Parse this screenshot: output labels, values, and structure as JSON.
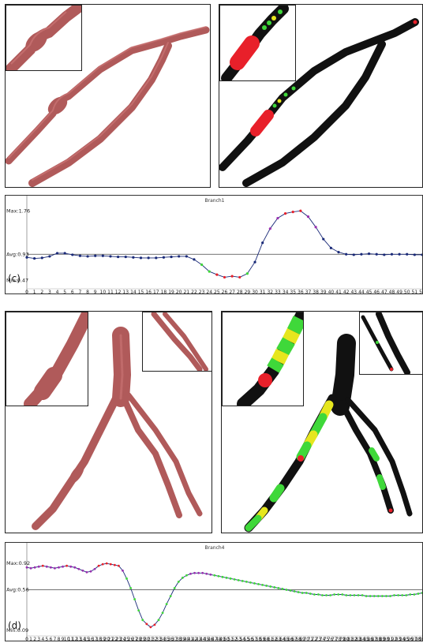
{
  "figure": {
    "panel_c_label": "(c)",
    "panel_d_label": "(d)"
  },
  "colors": {
    "vessel": "#b05a5a",
    "vessel_dark": "#6e2e2e",
    "black": "#111111",
    "red": "#e8202a",
    "green": "#3fd83a",
    "yellow": "#e6e61e",
    "purple": "#9a2fb0",
    "navy": "#1a2a78"
  },
  "chart_data": [
    {
      "type": "line",
      "title": "Branch1",
      "panel": "(c)",
      "max_label": "Max:1.76",
      "avg_label": "Avg:0.93",
      "min_label": "Min:0.47",
      "ylim": [
        0.3,
        1.9
      ],
      "avg": 0.93,
      "x": [
        0,
        1,
        2,
        3,
        4,
        5,
        6,
        7,
        8,
        9,
        10,
        11,
        12,
        13,
        14,
        15,
        16,
        17,
        18,
        19,
        20,
        21,
        22,
        23,
        24,
        25,
        26,
        27,
        28,
        29,
        30,
        31,
        32,
        33,
        34,
        35,
        36,
        37,
        38,
        39,
        40,
        41,
        42,
        43,
        44,
        45,
        46,
        47,
        48,
        49,
        50,
        51,
        52
      ],
      "values": [
        0.87,
        0.85,
        0.86,
        0.89,
        0.95,
        0.95,
        0.92,
        0.9,
        0.89,
        0.9,
        0.9,
        0.89,
        0.88,
        0.88,
        0.87,
        0.86,
        0.86,
        0.86,
        0.87,
        0.88,
        0.89,
        0.89,
        0.83,
        0.73,
        0.6,
        0.54,
        0.49,
        0.51,
        0.49,
        0.56,
        0.78,
        1.15,
        1.42,
        1.62,
        1.71,
        1.74,
        1.76,
        1.65,
        1.45,
        1.22,
        1.05,
        0.97,
        0.93,
        0.92,
        0.93,
        0.94,
        0.93,
        0.92,
        0.93,
        0.93,
        0.93,
        0.92,
        0.92
      ],
      "tick_labels": [
        "0",
        "1",
        "2",
        "3",
        "4",
        "5",
        "6",
        "7",
        "8",
        "9",
        "10",
        "11",
        "12",
        "13",
        "14",
        "15",
        "16",
        "17",
        "18",
        "19",
        "20",
        "21",
        "22",
        "23",
        "24",
        "25",
        "26",
        "27",
        "28",
        "29",
        "30",
        "31",
        "32",
        "33",
        "34",
        "35",
        "36",
        "37",
        "38",
        "39",
        "40",
        "41",
        "42",
        "43",
        "44",
        "45",
        "46",
        "47",
        "48",
        "49",
        "50",
        "51",
        "52"
      ]
    },
    {
      "type": "line",
      "title": "Branch4",
      "panel": "(d)",
      "max_label": "Max:0.92",
      "avg_label": "Avg:0.56",
      "min_label": "Min:0.09",
      "ylim": [
        0.0,
        1.05
      ],
      "avg": 0.56,
      "x": [
        0,
        1,
        2,
        3,
        4,
        5,
        6,
        7,
        8,
        9,
        10,
        11,
        12,
        13,
        14,
        15,
        16,
        17,
        18,
        19,
        20,
        21,
        22,
        23,
        24,
        25,
        26,
        27,
        28,
        29,
        30,
        31,
        32,
        33,
        34,
        35,
        36,
        37,
        38,
        39,
        40,
        41,
        42,
        43,
        44,
        45,
        46,
        47,
        48,
        49,
        50,
        51,
        52,
        53,
        54,
        55,
        56,
        57,
        58,
        59,
        60,
        61,
        62,
        63,
        64,
        65,
        66,
        67,
        68,
        69,
        70,
        71,
        72,
        73,
        74,
        75,
        76,
        77,
        78,
        79,
        80,
        81,
        82,
        83,
        84,
        85,
        86,
        87,
        88,
        89,
        90,
        91,
        92,
        93,
        94,
        95,
        96,
        97,
        98,
        99
      ],
      "values": [
        0.84,
        0.83,
        0.84,
        0.85,
        0.86,
        0.85,
        0.84,
        0.83,
        0.84,
        0.85,
        0.86,
        0.85,
        0.84,
        0.82,
        0.8,
        0.78,
        0.79,
        0.82,
        0.86,
        0.88,
        0.89,
        0.88,
        0.87,
        0.86,
        0.8,
        0.7,
        0.58,
        0.44,
        0.3,
        0.18,
        0.13,
        0.09,
        0.12,
        0.18,
        0.27,
        0.38,
        0.48,
        0.58,
        0.66,
        0.71,
        0.74,
        0.76,
        0.77,
        0.77,
        0.77,
        0.76,
        0.75,
        0.74,
        0.73,
        0.72,
        0.71,
        0.7,
        0.69,
        0.68,
        0.67,
        0.66,
        0.65,
        0.64,
        0.63,
        0.62,
        0.61,
        0.6,
        0.59,
        0.58,
        0.57,
        0.56,
        0.55,
        0.54,
        0.53,
        0.52,
        0.52,
        0.51,
        0.5,
        0.5,
        0.49,
        0.49,
        0.49,
        0.5,
        0.5,
        0.5,
        0.49,
        0.49,
        0.49,
        0.49,
        0.49,
        0.48,
        0.48,
        0.48,
        0.48,
        0.48,
        0.48,
        0.48,
        0.49,
        0.49,
        0.49,
        0.49,
        0.5,
        0.5,
        0.51,
        0.52
      ],
      "tick_labels": [
        "0",
        "1",
        "2",
        "3",
        "4",
        "5",
        "6",
        "7",
        "8",
        "9",
        "10",
        "11",
        "12",
        "13",
        "14",
        "15",
        "16",
        "17",
        "18",
        "19",
        "20",
        "21",
        "22",
        "23",
        "24",
        "25",
        "26",
        "27",
        "28",
        "29",
        "30",
        "31",
        "32",
        "33",
        "34",
        "35",
        "36",
        "37",
        "38",
        "39",
        "40",
        "41",
        "42",
        "43",
        "44",
        "45",
        "46",
        "47",
        "48",
        "49",
        "50",
        "51",
        "52",
        "53",
        "54",
        "55",
        "56",
        "57",
        "58",
        "59",
        "60",
        "61",
        "62",
        "63",
        "64",
        "65",
        "66",
        "67",
        "68",
        "69",
        "70",
        "71",
        "72",
        "73",
        "74",
        "75",
        "76",
        "77",
        "78",
        "79",
        "80",
        "81",
        "82",
        "83",
        "84",
        "85",
        "86",
        "87",
        "88",
        "89",
        "90",
        "91",
        "92",
        "93",
        "94",
        "95",
        "96",
        "97",
        "98",
        "99"
      ]
    }
  ]
}
